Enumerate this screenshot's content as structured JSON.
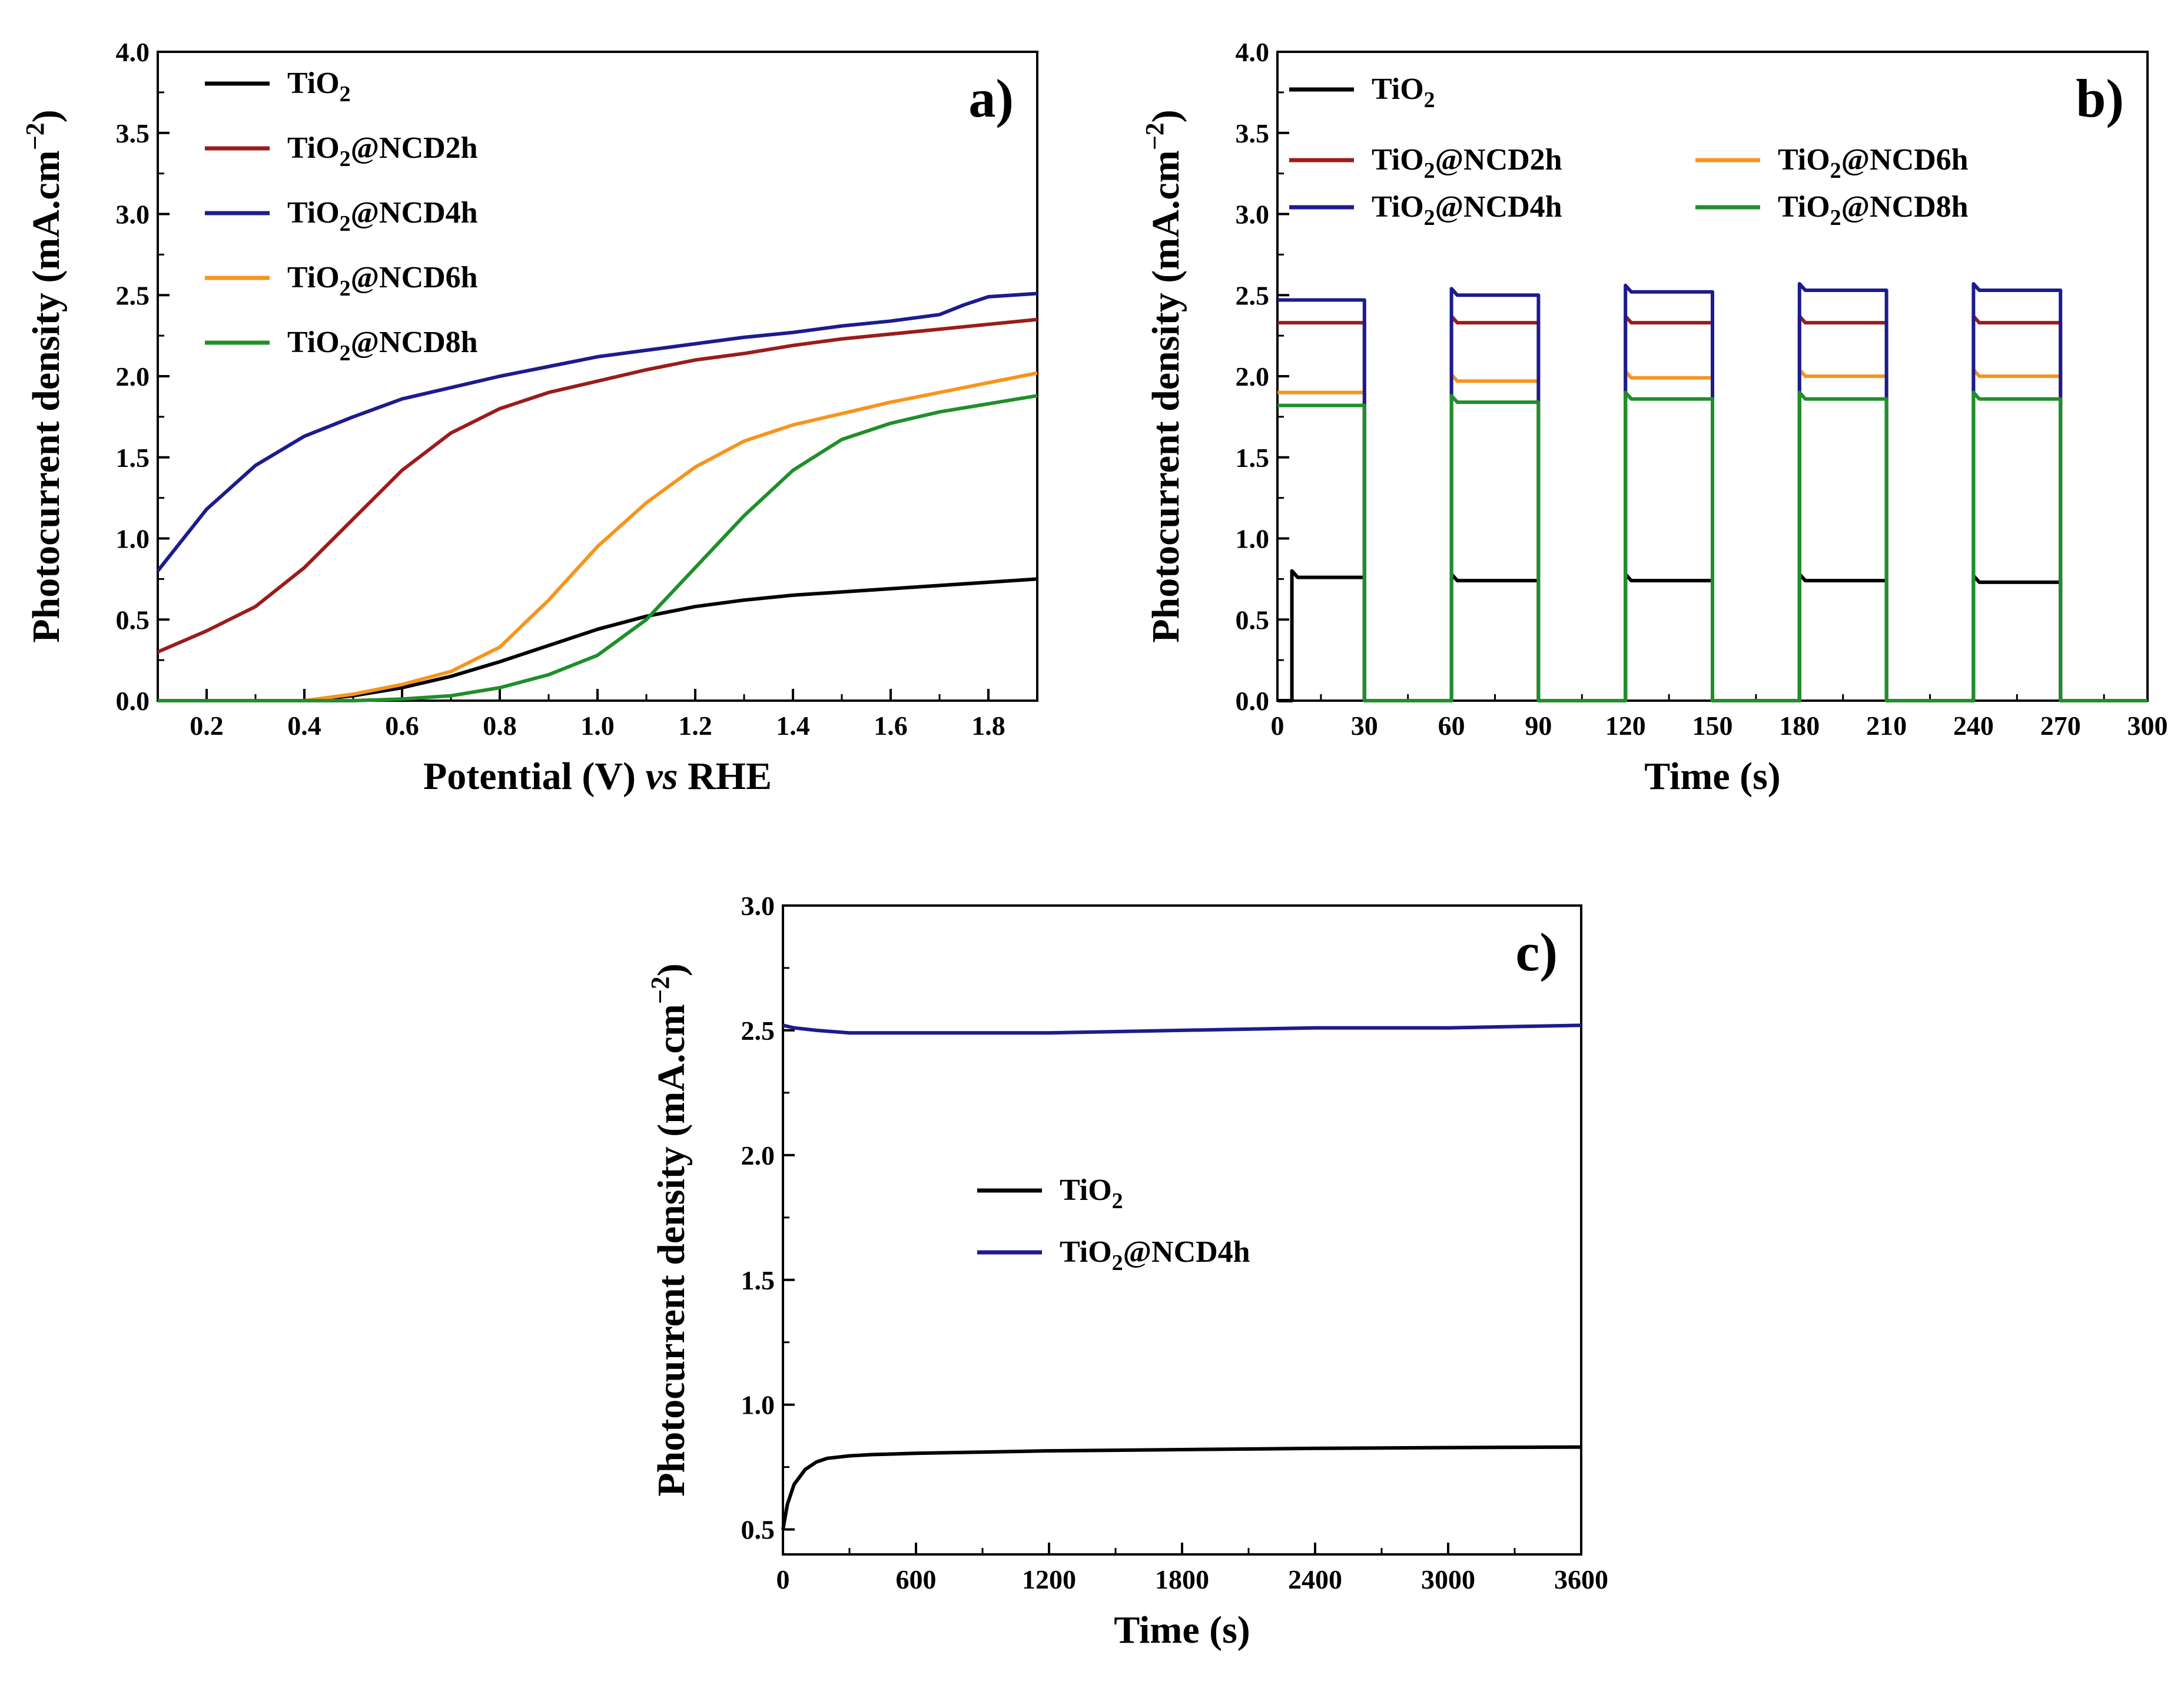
{
  "colors": {
    "TiO2": "#000000",
    "TiO2@NCD2h": "#9b1c1c",
    "TiO2@NCD4h": "#1c1c8f",
    "TiO2@NCD6h": "#f7941d",
    "TiO2@NCD8h": "#1f8f2a"
  },
  "chart_data": [
    {
      "id": "a",
      "type": "line",
      "panel_label": "a)",
      "title": "",
      "xlabel": "Potential (V) vs RHE",
      "xlabel_parts": [
        "Potential (V) ",
        "vs",
        " RHE"
      ],
      "ylabel": "Photocurrent density (mA.cm−2)",
      "ylabel_parts": [
        "Photocurrent density (mA.cm",
        "−2",
        ")"
      ],
      "xlim": [
        0.1,
        1.9
      ],
      "ylim": [
        0,
        4.0
      ],
      "xticks": [
        "0.2",
        "0.4",
        "0.6",
        "0.8",
        "1.0",
        "1.2",
        "1.4",
        "1.6",
        "1.8"
      ],
      "yticks": [
        "0.0",
        "0.5",
        "1.0",
        "1.5",
        "2.0",
        "2.5",
        "3.0",
        "3.5",
        "4.0"
      ],
      "legend": [
        {
          "base": "TiO",
          "sub": "2",
          "rest": ""
        },
        {
          "base": "TiO",
          "sub": "2",
          "rest": "@NCD2h"
        },
        {
          "base": "TiO",
          "sub": "2",
          "rest": "@NCD4h"
        },
        {
          "base": "TiO",
          "sub": "2",
          "rest": "@NCD6h"
        },
        {
          "base": "TiO",
          "sub": "2",
          "rest": "@NCD8h"
        }
      ],
      "series": [
        {
          "name": "TiO2",
          "x": [
            0.1,
            0.3,
            0.4,
            0.5,
            0.6,
            0.7,
            0.8,
            0.9,
            1.0,
            1.1,
            1.2,
            1.3,
            1.4,
            1.5,
            1.6,
            1.7,
            1.8,
            1.9
          ],
          "y": [
            0.0,
            0.0,
            0.0,
            0.03,
            0.08,
            0.15,
            0.24,
            0.34,
            0.44,
            0.52,
            0.58,
            0.62,
            0.65,
            0.67,
            0.69,
            0.71,
            0.73,
            0.75
          ]
        },
        {
          "name": "TiO2@NCD2h",
          "x": [
            0.1,
            0.2,
            0.3,
            0.4,
            0.5,
            0.6,
            0.7,
            0.8,
            0.9,
            1.0,
            1.1,
            1.2,
            1.3,
            1.4,
            1.5,
            1.6,
            1.7,
            1.8,
            1.9
          ],
          "y": [
            0.3,
            0.43,
            0.58,
            0.82,
            1.12,
            1.42,
            1.65,
            1.8,
            1.9,
            1.97,
            2.04,
            2.1,
            2.14,
            2.19,
            2.23,
            2.26,
            2.29,
            2.32,
            2.35
          ]
        },
        {
          "name": "TiO2@NCD4h",
          "x": [
            0.1,
            0.2,
            0.3,
            0.4,
            0.5,
            0.6,
            0.7,
            0.8,
            0.9,
            1.0,
            1.1,
            1.2,
            1.3,
            1.4,
            1.5,
            1.6,
            1.7,
            1.75,
            1.8,
            1.9
          ],
          "y": [
            0.8,
            1.18,
            1.45,
            1.63,
            1.75,
            1.86,
            1.93,
            2.0,
            2.06,
            2.12,
            2.16,
            2.2,
            2.24,
            2.27,
            2.31,
            2.34,
            2.38,
            2.44,
            2.49,
            2.51
          ]
        },
        {
          "name": "TiO2@NCD6h",
          "x": [
            0.1,
            0.3,
            0.4,
            0.5,
            0.6,
            0.7,
            0.8,
            0.9,
            1.0,
            1.1,
            1.2,
            1.3,
            1.4,
            1.5,
            1.6,
            1.7,
            1.8,
            1.9
          ],
          "y": [
            0.0,
            0.0,
            0.0,
            0.04,
            0.1,
            0.18,
            0.33,
            0.62,
            0.95,
            1.22,
            1.44,
            1.6,
            1.7,
            1.77,
            1.84,
            1.9,
            1.96,
            2.02
          ]
        },
        {
          "name": "TiO2@NCD8h",
          "x": [
            0.1,
            0.4,
            0.5,
            0.6,
            0.7,
            0.8,
            0.9,
            1.0,
            1.1,
            1.2,
            1.3,
            1.4,
            1.5,
            1.6,
            1.7,
            1.8,
            1.9
          ],
          "y": [
            0.0,
            0.0,
            0.0,
            0.01,
            0.03,
            0.08,
            0.16,
            0.28,
            0.5,
            0.82,
            1.14,
            1.42,
            1.61,
            1.71,
            1.78,
            1.83,
            1.88
          ]
        }
      ]
    },
    {
      "id": "b",
      "type": "line",
      "panel_label": "b)",
      "title": "",
      "xlabel": "Time (s)",
      "ylabel": "Photocurrent density (mA.cm−2)",
      "ylabel_parts": [
        "Photocurrent density (mA.cm",
        "−2",
        ")"
      ],
      "xlim": [
        0,
        300
      ],
      "ylim": [
        0,
        4.0
      ],
      "xticks": [
        "0",
        "30",
        "60",
        "90",
        "120",
        "150",
        "180",
        "210",
        "240",
        "270",
        "300"
      ],
      "yticks": [
        "0.0",
        "0.5",
        "1.0",
        "1.5",
        "2.0",
        "2.5",
        "3.0",
        "3.5",
        "4.0"
      ],
      "legend": [
        {
          "base": "TiO",
          "sub": "2",
          "rest": ""
        },
        {
          "base": "TiO",
          "sub": "2",
          "rest": "@NCD2h"
        },
        {
          "base": "TiO",
          "sub": "2",
          "rest": "@NCD6h"
        },
        {
          "base": "TiO",
          "sub": "2",
          "rest": "@NCD4h"
        },
        {
          "base": "TiO",
          "sub": "2",
          "rest": "@NCD8h"
        }
      ],
      "on_intervals": [
        [
          5,
          30
        ],
        [
          60,
          90
        ],
        [
          120,
          150
        ],
        [
          180,
          210
        ],
        [
          240,
          270
        ]
      ],
      "series": [
        {
          "name": "TiO2",
          "on": [
            0.76,
            0.74,
            0.74,
            0.74,
            0.73
          ],
          "off": 0.0
        },
        {
          "name": "TiO2@NCD2h",
          "on": [
            2.33,
            2.33,
            2.33,
            2.33,
            2.33
          ],
          "off": 0.0
        },
        {
          "name": "TiO2@NCD6h",
          "on": [
            1.9,
            1.97,
            1.99,
            2.0,
            2.0
          ],
          "off": 0.0
        },
        {
          "name": "TiO2@NCD4h",
          "on": [
            2.47,
            2.5,
            2.52,
            2.53,
            2.53
          ],
          "off": 0.0
        },
        {
          "name": "TiO2@NCD8h",
          "on": [
            1.82,
            1.84,
            1.86,
            1.86,
            1.86
          ],
          "off": 0.0
        }
      ]
    },
    {
      "id": "c",
      "type": "line",
      "panel_label": "c)",
      "title": "",
      "xlabel": "Time (s)",
      "ylabel": "Photocurrent density (mA.cm−2)",
      "ylabel_parts": [
        "Photocurrent density (mA.cm",
        "−2",
        ")"
      ],
      "xlim": [
        0,
        3600
      ],
      "ylim": [
        0.4,
        3.0
      ],
      "xticks": [
        "0",
        "600",
        "1200",
        "1800",
        "2400",
        "3000",
        "3600"
      ],
      "yticks": [
        "0.5",
        "1.0",
        "1.5",
        "2.0",
        "2.5",
        "3.0"
      ],
      "legend": [
        {
          "base": "TiO",
          "sub": "2",
          "rest": ""
        },
        {
          "base": "TiO",
          "sub": "2",
          "rest": "@NCD4h"
        }
      ],
      "series": [
        {
          "name": "TiO2",
          "x": [
            0,
            20,
            50,
            100,
            150,
            200,
            300,
            400,
            600,
            900,
            1200,
            1800,
            2400,
            3000,
            3600
          ],
          "y": [
            0.5,
            0.6,
            0.68,
            0.74,
            0.77,
            0.785,
            0.795,
            0.8,
            0.805,
            0.81,
            0.815,
            0.82,
            0.825,
            0.828,
            0.83
          ]
        },
        {
          "name": "TiO2@NCD4h",
          "x": [
            0,
            50,
            150,
            300,
            600,
            900,
            1200,
            1800,
            2400,
            3000,
            3600
          ],
          "y": [
            2.52,
            2.51,
            2.5,
            2.49,
            2.49,
            2.49,
            2.49,
            2.5,
            2.51,
            2.51,
            2.52
          ]
        }
      ]
    }
  ]
}
